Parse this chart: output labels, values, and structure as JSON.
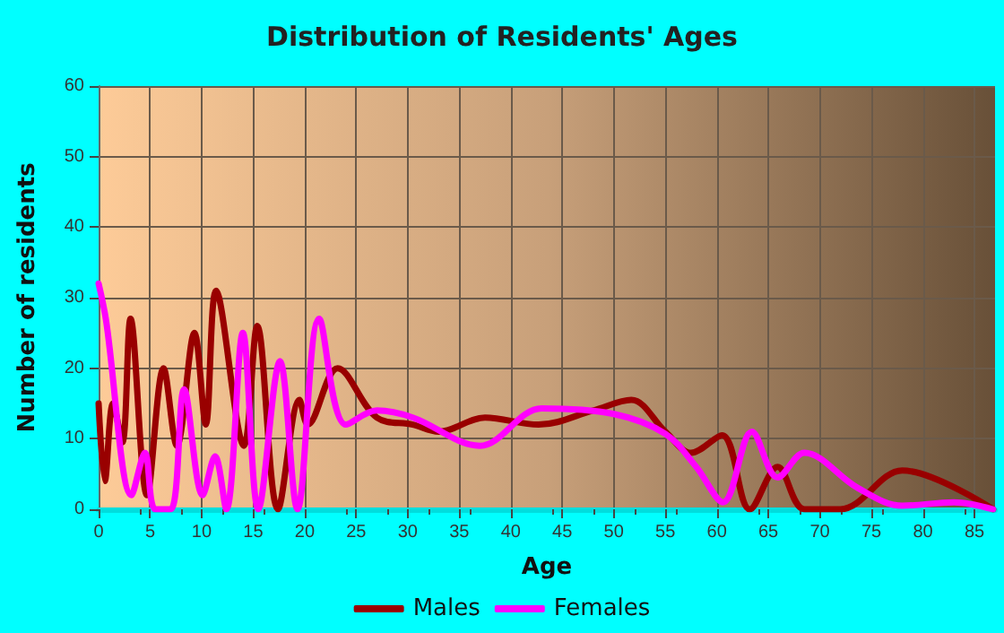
{
  "chart_data": {
    "type": "line",
    "title": "Distribution of Residents' Ages",
    "xlabel": "Age",
    "ylabel": "Number of residents",
    "xlim": [
      0,
      87
    ],
    "xticks": [
      0,
      5,
      10,
      15,
      20,
      25,
      30,
      35,
      40,
      45,
      50,
      55,
      60,
      65,
      70,
      75,
      80,
      85
    ],
    "ylim": [
      0,
      60
    ],
    "yticks": [
      0,
      10,
      20,
      30,
      40,
      50,
      60
    ],
    "grid": true,
    "legend": "bottom",
    "marker": "none",
    "line_style": "solid",
    "series": [
      {
        "name": "Males",
        "color": "#990000",
        "x": [
          0,
          0.6,
          1.4,
          2.3,
          3.1,
          4.7,
          6.3,
          7.6,
          9.3,
          10.4,
          11.4,
          14.1,
          15.4,
          17.4,
          19.5,
          20.3,
          23.2,
          27,
          30.5,
          33,
          37.5,
          42.7,
          48,
          51.7,
          55,
          57.5,
          60.5,
          63.2,
          65.9,
          68.5,
          72,
          78,
          86.8
        ],
        "values": [
          15,
          4,
          15,
          9.5,
          27,
          2,
          20,
          9,
          25,
          12,
          31,
          9,
          26,
          0,
          15.5,
          12,
          20,
          13,
          12,
          11,
          13,
          12,
          14,
          15.5,
          11,
          8,
          10.5,
          0,
          6,
          0,
          0,
          5.5,
          0
        ]
      },
      {
        "name": "Females",
        "color": "#ff00ff",
        "x": [
          0,
          0.7,
          3.2,
          4.5,
          5.5,
          7,
          8.3,
          10.1,
          11.3,
          12.4,
          14,
          15.5,
          17.6,
          19.3,
          21.4,
          24,
          27,
          30.5,
          37,
          43,
          50,
          55,
          58,
          60.6,
          63.4,
          65.9,
          68.5,
          73.7,
          78,
          83,
          86.8
        ],
        "values": [
          32,
          27,
          2,
          8,
          0,
          0,
          17,
          2,
          7.5,
          0,
          25,
          0,
          21,
          0,
          27,
          12,
          14,
          13,
          9,
          14.3,
          13.5,
          10.7,
          6,
          1,
          11,
          4.5,
          8,
          3,
          0.5,
          1,
          0
        ]
      }
    ]
  }
}
